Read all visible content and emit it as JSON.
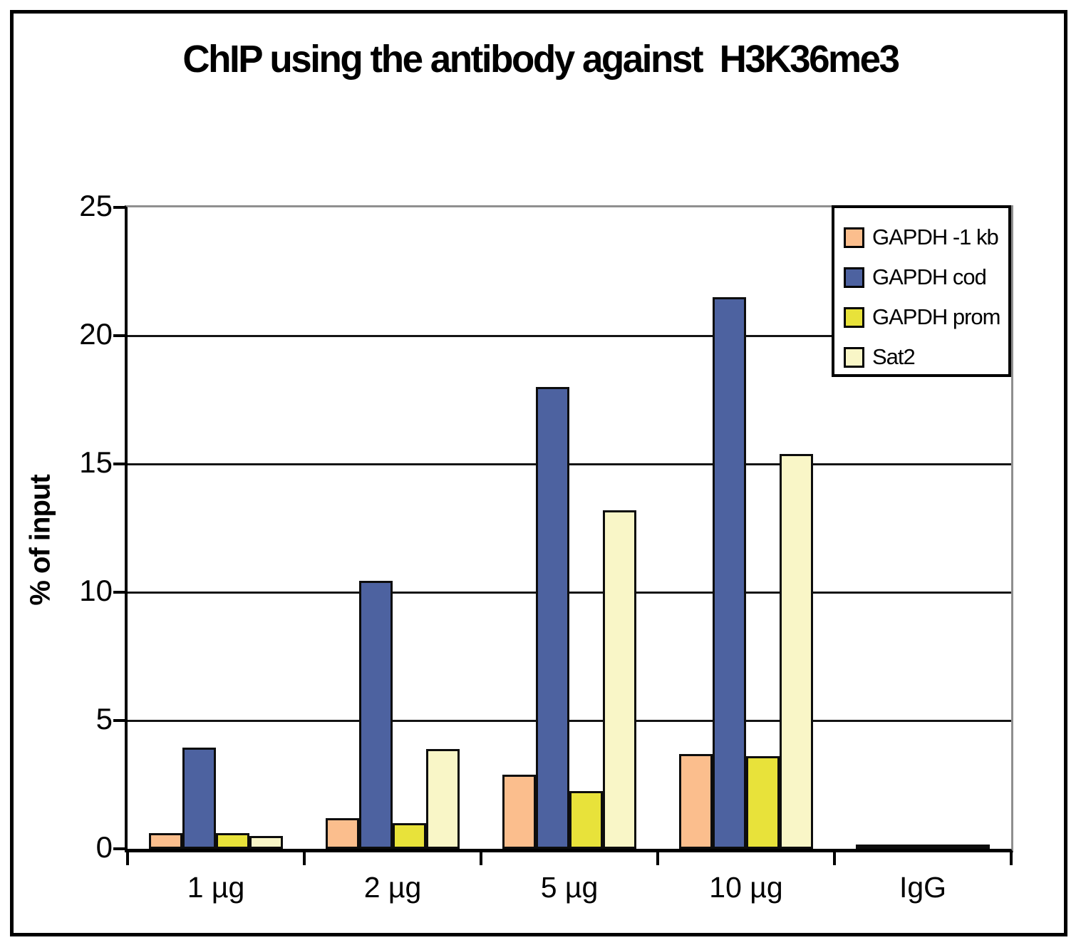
{
  "chart_data": {
    "type": "bar",
    "title": "ChIP using the antibody against  H3K36me3",
    "ylabel": "% of input",
    "xlabel": "",
    "categories": [
      "1 µg",
      "2 µg",
      "5 µg",
      "10 µg",
      "IgG"
    ],
    "series": [
      {
        "name": "GAPDH -1 kb",
        "color": "#FBBE8D",
        "values": [
          0.6,
          1.2,
          2.9,
          3.7,
          0.1
        ]
      },
      {
        "name": "GAPDH cod",
        "color": "#4D62A0",
        "values": [
          3.95,
          10.45,
          18.0,
          21.5,
          0.1
        ]
      },
      {
        "name": "GAPDH prom",
        "color": "#E8E23A",
        "values": [
          0.6,
          1.0,
          2.25,
          3.6,
          0.15
        ]
      },
      {
        "name": "Sat2",
        "color": "#F9F6C7",
        "values": [
          0.5,
          3.9,
          13.2,
          15.4,
          0.1
        ]
      }
    ],
    "ylim": [
      0,
      25
    ],
    "yticks": [
      0,
      5,
      10,
      15,
      20,
      25
    ],
    "grid": true,
    "legend_position": "top-right",
    "colors": {
      "axis": "#000000",
      "gridline": "#141414",
      "plot_top_right_border": "#8f8f8f",
      "background": "#ffffff"
    }
  }
}
